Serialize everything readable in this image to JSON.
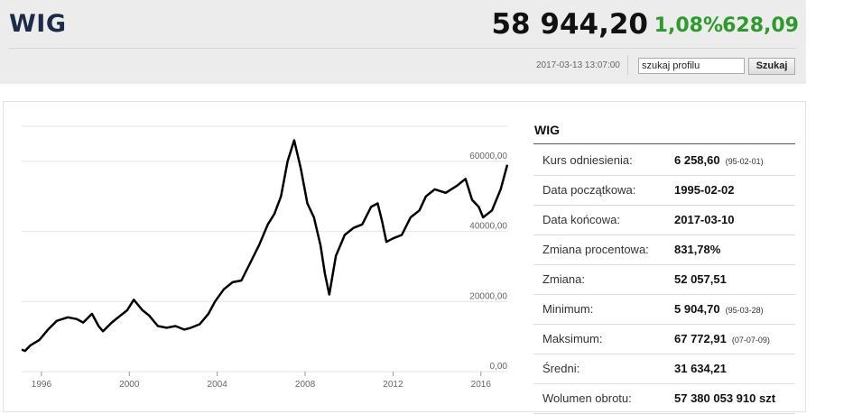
{
  "header": {
    "ticker": "WIG",
    "price": "58 944,20",
    "change_pct": "1,08%",
    "change_abs": "628,09",
    "timestamp": "2017-03-13 13:07:00",
    "search_value": "szukaj profilu",
    "search_button": "Szukaj"
  },
  "colors": {
    "positive": "#2c9a2c",
    "ticker": "#1c2b4a"
  },
  "stats": {
    "title": "WIG",
    "rows": [
      {
        "label": "Kurs odniesienia:",
        "value": "6 258,60",
        "sub": "(95-02-01)"
      },
      {
        "label": "Data początkowa:",
        "value": "1995-02-02",
        "sub": ""
      },
      {
        "label": "Data końcowa:",
        "value": "2017-03-10",
        "sub": ""
      },
      {
        "label": "Zmiana procentowa:",
        "value": "831,78%",
        "sub": ""
      },
      {
        "label": "Zmiana:",
        "value": "52 057,51",
        "sub": ""
      },
      {
        "label": "Minimum:",
        "value": "5 904,70",
        "sub": "(95-03-28)"
      },
      {
        "label": "Maksimum:",
        "value": "67 772,91",
        "sub": "(07-07-09)"
      },
      {
        "label": "Średni:",
        "value": "31 634,21",
        "sub": ""
      },
      {
        "label": "Wolumen obrotu:",
        "value": "57 380 053 910 szt",
        "sub": ""
      }
    ]
  },
  "chart_data": {
    "type": "line",
    "x_ticks": [
      1996,
      2000,
      2004,
      2008,
      2012,
      2016
    ],
    "x_tick_labels": [
      "1996",
      "2000",
      "2004",
      "2008",
      "2012",
      "2016"
    ],
    "y_ticks": [
      0,
      20000,
      40000,
      60000
    ],
    "y_tick_labels": [
      "0,00",
      "20000,00",
      "40000,00",
      "60000,00"
    ],
    "xlim": [
      1995.1,
      2017.2
    ],
    "ylim": [
      0,
      70000
    ],
    "grid": "horizontal",
    "series": [
      {
        "x": [
          1995.1,
          1995.25,
          1995.5,
          1995.9,
          1996.3,
          1996.7,
          1997.2,
          1997.6,
          1997.9,
          1998.3,
          1998.6,
          1998.8,
          1999.2,
          1999.6,
          1999.9,
          2000.2,
          2000.6,
          2000.9,
          2001.3,
          2001.7,
          2002.1,
          2002.5,
          2002.8,
          2003.2,
          2003.6,
          2003.9,
          2004.3,
          2004.7,
          2005.1,
          2005.5,
          2005.9,
          2006.3,
          2006.6,
          2006.9,
          2007.2,
          2007.5,
          2007.8,
          2008.1,
          2008.4,
          2008.7,
          2008.9,
          2009.1,
          2009.4,
          2009.8,
          2010.2,
          2010.6,
          2011.0,
          2011.3,
          2011.5,
          2011.7,
          2012.0,
          2012.4,
          2012.8,
          2013.2,
          2013.5,
          2013.9,
          2014.4,
          2014.9,
          2015.3,
          2015.6,
          2015.9,
          2016.1,
          2016.5,
          2016.9,
          2017.2
        ],
        "y": [
          6300,
          5900,
          7500,
          9000,
          12000,
          14500,
          15500,
          15000,
          14000,
          16500,
          13000,
          11500,
          14000,
          16000,
          17500,
          20500,
          17500,
          16000,
          13000,
          12500,
          13000,
          12000,
          12500,
          13500,
          16500,
          20000,
          23500,
          25500,
          26000,
          31000,
          36000,
          42000,
          45000,
          50000,
          60000,
          66000,
          58000,
          48000,
          44000,
          36000,
          28000,
          22000,
          33000,
          39000,
          41000,
          42000,
          47000,
          48000,
          43000,
          37000,
          38000,
          39000,
          44000,
          46000,
          50000,
          52000,
          51000,
          53000,
          55000,
          49000,
          47000,
          44000,
          46000,
          52000,
          59000
        ]
      }
    ]
  }
}
